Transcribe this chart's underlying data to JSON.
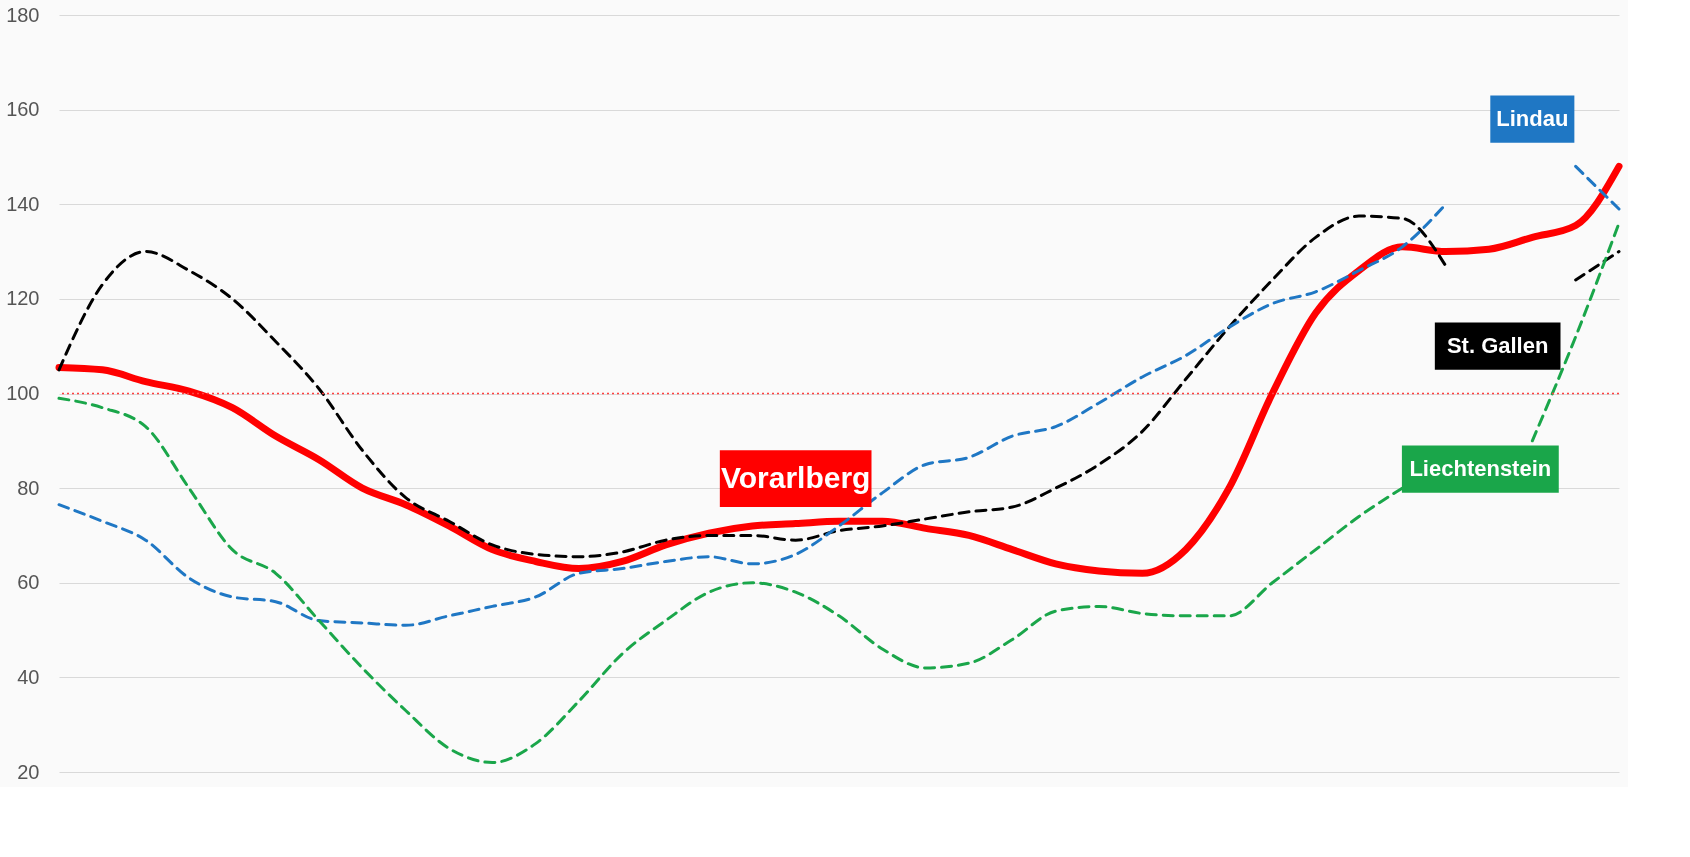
{
  "chart_data": {
    "type": "line",
    "categories": [
      null,
      null,
      null,
      null,
      null,
      null,
      null,
      null,
      null,
      null,
      null,
      null,
      null,
      null,
      null,
      null,
      null,
      null,
      null,
      null,
      null,
      null,
      null,
      null,
      null,
      null,
      null,
      null,
      null,
      null,
      null,
      null,
      null,
      null,
      null,
      null,
      null
    ],
    "series": [
      {
        "name": "Vorarlberg",
        "color": "#ff0000",
        "line_style": "solid",
        "values": [
          105.5,
          105,
          102.5,
          100.5,
          97,
          91,
          86,
          80,
          76.5,
          72,
          67,
          64.5,
          63,
          64.5,
          68,
          70.5,
          72,
          72.5,
          73,
          73,
          71.5,
          70,
          67,
          64,
          62.5,
          62,
          67,
          80,
          100,
          117,
          126,
          131,
          130,
          130.5,
          133,
          135.5,
          148
        ]
      },
      {
        "name": "St. Gallen",
        "color": "#000000",
        "line_style": "dashed",
        "values": [
          105,
          123,
          130,
          126,
          120,
          111,
          101,
          88,
          78,
          73,
          68,
          66,
          65.5,
          66.5,
          69,
          70,
          70,
          69,
          71,
          72,
          73.5,
          75,
          76,
          80,
          85,
          92,
          103,
          114,
          124,
          133,
          137.5,
          137,
          127,
          null,
          null,
          124,
          130
        ]
      },
      {
        "name": "Lindau",
        "color": "#1f77c4",
        "line_style": "dashed",
        "values": [
          76.5,
          73,
          69,
          61,
          57,
          56,
          52,
          51.5,
          51,
          53,
          55,
          57,
          62,
          63,
          64.5,
          65.5,
          64,
          66,
          72,
          79,
          85,
          86.5,
          91,
          93,
          98,
          103.5,
          108,
          114,
          119,
          121.5,
          126,
          131,
          140,
          null,
          null,
          148,
          139
        ]
      },
      {
        "name": "Liechtenstein",
        "color": "#1aa64a",
        "line_style": "dashed",
        "values": [
          99,
          97,
          93,
          80,
          67,
          62,
          52,
          42,
          33,
          25,
          22,
          26,
          35,
          45,
          52,
          58,
          60,
          58,
          53,
          46,
          42,
          43,
          48,
          54,
          55,
          53.5,
          53,
          53,
          60,
          67,
          74,
          80,
          null,
          null,
          90,
          112,
          136
        ]
      }
    ],
    "ylim": [
      20,
      180
    ],
    "yticks": [
      20,
      40,
      60,
      80,
      100,
      120,
      140,
      160,
      180
    ],
    "grid": "y",
    "tick_labels": "y",
    "ref_lines": [
      {
        "axis": "y",
        "value": 100,
        "color": "#ff4040",
        "line_style": "dotted"
      }
    ]
  }
}
